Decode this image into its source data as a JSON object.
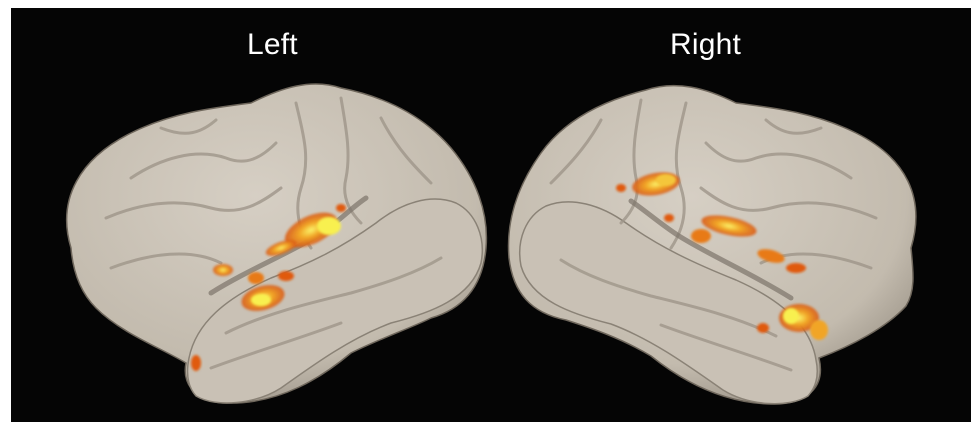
{
  "figure": {
    "labels": {
      "left": "Left",
      "right": "Right"
    },
    "colors": {
      "background": "#050505",
      "cortex": "#cbc3b7",
      "sulcus": "#9f968a",
      "activation_low": "#e05a10",
      "activation_mid": "#f0a020",
      "activation_high": "#f8f050"
    }
  }
}
